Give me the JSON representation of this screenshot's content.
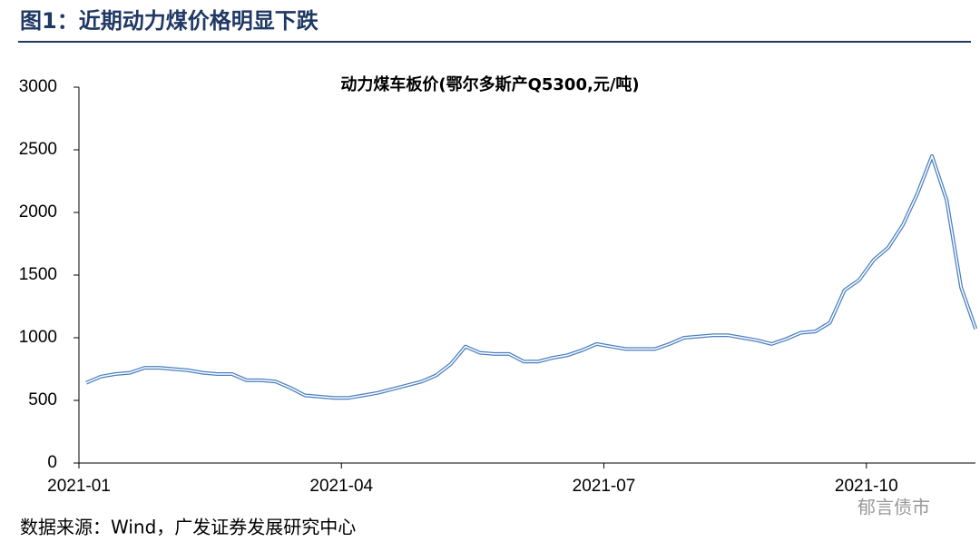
{
  "title": "图1：近期动力煤价格明显下跌",
  "source": "数据来源：Wind，广发证券发展研究中心",
  "watermark": "郁言债市",
  "chart_data": {
    "type": "line",
    "title": "动力煤车板价(鄂尔多斯产Q5300,元/吨)",
    "x": [
      "2021-01",
      "2021-01",
      "2021-01",
      "2021-01",
      "2021-01",
      "2021-01",
      "2021-02",
      "2021-02",
      "2021-02",
      "2021-02",
      "2021-02",
      "2021-02",
      "2021-03",
      "2021-03",
      "2021-03",
      "2021-03",
      "2021-03",
      "2021-03",
      "2021-04",
      "2021-04",
      "2021-04",
      "2021-04",
      "2021-04",
      "2021-04",
      "2021-05",
      "2021-05",
      "2021-05",
      "2021-05",
      "2021-05",
      "2021-05",
      "2021-06",
      "2021-06",
      "2021-06",
      "2021-06",
      "2021-06",
      "2021-06",
      "2021-07",
      "2021-07",
      "2021-07",
      "2021-07",
      "2021-07",
      "2021-07",
      "2021-08",
      "2021-08",
      "2021-08",
      "2021-08",
      "2021-08",
      "2021-08",
      "2021-09",
      "2021-09",
      "2021-09",
      "2021-09",
      "2021-09",
      "2021-09",
      "2021-10",
      "2021-10",
      "2021-10",
      "2021-10",
      "2021-10",
      "2021-10",
      "2021-11",
      "2021-11"
    ],
    "series": [
      {
        "name": "动力煤车板价",
        "color": "#4a7fc0",
        "values": [
          640,
          690,
          710,
          720,
          760,
          760,
          750,
          740,
          720,
          710,
          710,
          660,
          660,
          650,
          600,
          540,
          530,
          520,
          520,
          540,
          560,
          590,
          620,
          650,
          700,
          790,
          930,
          880,
          870,
          870,
          810,
          810,
          840,
          860,
          900,
          950,
          930,
          910,
          910,
          910,
          950,
          1000,
          1010,
          1020,
          1020,
          1000,
          980,
          950,
          990,
          1040,
          1050,
          1120,
          1380,
          1460,
          1620,
          1720,
          1900,
          2150,
          2450,
          2100,
          1400,
          1070
        ]
      }
    ],
    "xticks": [
      "2021-01",
      "2021-04",
      "2021-07",
      "2021-10"
    ],
    "ylim": [
      0,
      3000
    ],
    "yticks": [
      0,
      500,
      1000,
      1500,
      2000,
      2500,
      3000
    ]
  }
}
